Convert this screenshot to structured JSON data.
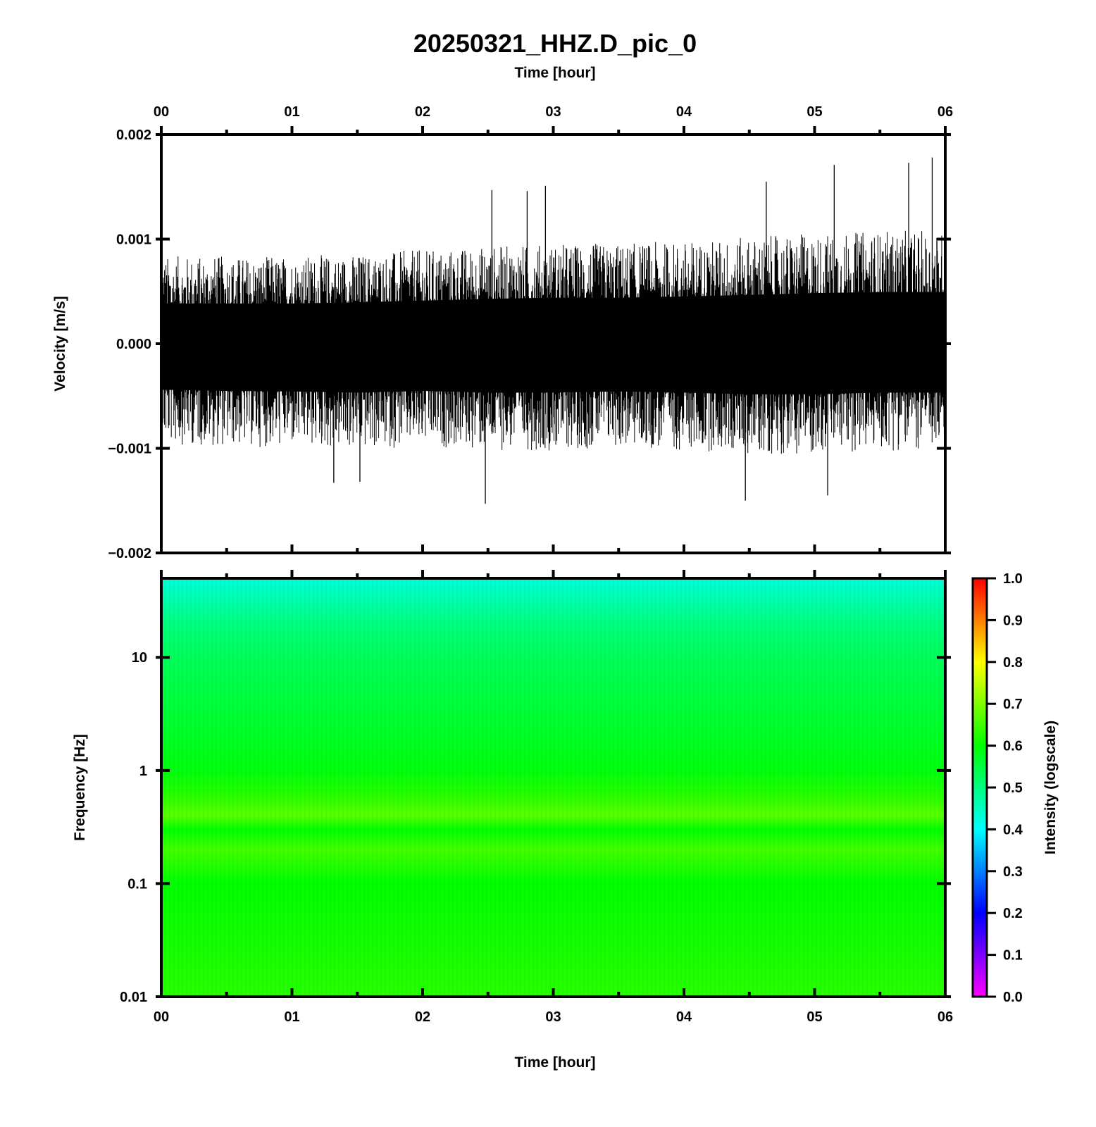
{
  "chart_data": [
    {
      "type": "line",
      "title": "20250321_HHZ.D_pic_0",
      "xlabel": "Time [hour]",
      "ylabel": "Velocity [m/s]",
      "x_tick_labels": [
        "00",
        "01",
        "02",
        "03",
        "04",
        "05",
        "06"
      ],
      "xlim": [
        0,
        6
      ],
      "y_tick_labels": [
        "0.002",
        "0.001",
        "0.000",
        "−0.001",
        "−0.002"
      ],
      "y_ticks": [
        0.002,
        0.001,
        0.0,
        -0.001,
        -0.002
      ],
      "ylim": [
        -0.002,
        0.002
      ],
      "series": [
        {
          "envelope_hours": [
            0,
            0.5,
            1,
            1.5,
            2,
            2.5,
            3,
            3.5,
            4,
            4.5,
            5,
            5.5,
            6
          ],
          "typical_peak_pos": [
            0.0007,
            0.0007,
            0.0007,
            0.00072,
            0.00075,
            0.00078,
            0.0008,
            0.0008,
            0.00082,
            0.00085,
            0.00088,
            0.0009,
            0.0009
          ],
          "typical_peak_neg": [
            -0.0008,
            -0.00082,
            -0.00083,
            -0.00085,
            -0.00082,
            -0.00085,
            -0.00085,
            -0.00083,
            -0.00085,
            -0.00088,
            -0.00088,
            -0.00085,
            -0.00085
          ],
          "spikes": [
            {
              "x": 2.48,
              "y": -0.00153
            },
            {
              "x": 4.47,
              "y": -0.0015
            },
            {
              "x": 5.1,
              "y": -0.00145
            },
            {
              "x": 5.9,
              "y": 0.00178
            },
            {
              "x": 5.72,
              "y": 0.00173
            },
            {
              "x": 5.15,
              "y": 0.00171
            },
            {
              "x": 4.63,
              "y": 0.00155
            },
            {
              "x": 2.53,
              "y": 0.00147
            },
            {
              "x": 2.94,
              "y": 0.00151
            },
            {
              "x": 2.8,
              "y": 0.00146
            },
            {
              "x": 1.32,
              "y": -0.00133
            },
            {
              "x": 1.52,
              "y": -0.00132
            }
          ],
          "color": "#000000"
        }
      ],
      "grid": false
    },
    {
      "type": "heatmap",
      "xlabel": "Time [hour]",
      "ylabel": "Frequency [Hz]",
      "x_tick_labels": [
        "00",
        "01",
        "02",
        "03",
        "04",
        "05",
        "06"
      ],
      "xlim": [
        0,
        6
      ],
      "y_tick_labels": [
        "10",
        "1",
        "0.1",
        "0.01"
      ],
      "y_ticks": [
        10,
        1,
        0.1,
        0.01
      ],
      "ylim": [
        0.01,
        50
      ],
      "y_scale": "log",
      "frequency_profile": [
        {
          "f": 50,
          "intensity": 0.43
        },
        {
          "f": 20,
          "intensity": 0.5
        },
        {
          "f": 10,
          "intensity": 0.53
        },
        {
          "f": 3,
          "intensity": 0.56
        },
        {
          "f": 1,
          "intensity": 0.59
        },
        {
          "f": 0.6,
          "intensity": 0.63
        },
        {
          "f": 0.4,
          "intensity": 0.67
        },
        {
          "f": 0.3,
          "intensity": 0.6
        },
        {
          "f": 0.2,
          "intensity": 0.65
        },
        {
          "f": 0.1,
          "intensity": 0.6
        },
        {
          "f": 0.01,
          "intensity": 0.63
        }
      ],
      "colorbar": {
        "label": "Intensity (logscale)",
        "range": [
          0,
          1
        ],
        "tick_labels": [
          "1.0",
          "0.9",
          "0.8",
          "0.7",
          "0.6",
          "0.5",
          "0.4",
          "0.3",
          "0.2",
          "0.1",
          "0.0"
        ],
        "colors": [
          "#ff00ff",
          "#0000ff",
          "#00ffff",
          "#00ff00",
          "#ffff00",
          "#ff0000"
        ]
      }
    }
  ]
}
